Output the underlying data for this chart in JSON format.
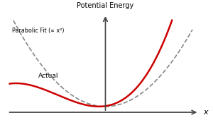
{
  "title": "Potential Energy",
  "xlabel": "x",
  "parabolic_label": "Parabolic Fit (∝ x²)",
  "actual_label": "Actual",
  "x_min": -2.2,
  "x_max": 2.0,
  "parabola_color": "#888888",
  "actual_color": "#cc0000",
  "background_color": "#ffffff",
  "axis_color": "#444444",
  "y_max_clip": 4.5,
  "x_axis_y": -0.3,
  "anharmonic_shift": -0.15,
  "anharmonic_coeff": 0.35,
  "spring_coeff": 1.0
}
